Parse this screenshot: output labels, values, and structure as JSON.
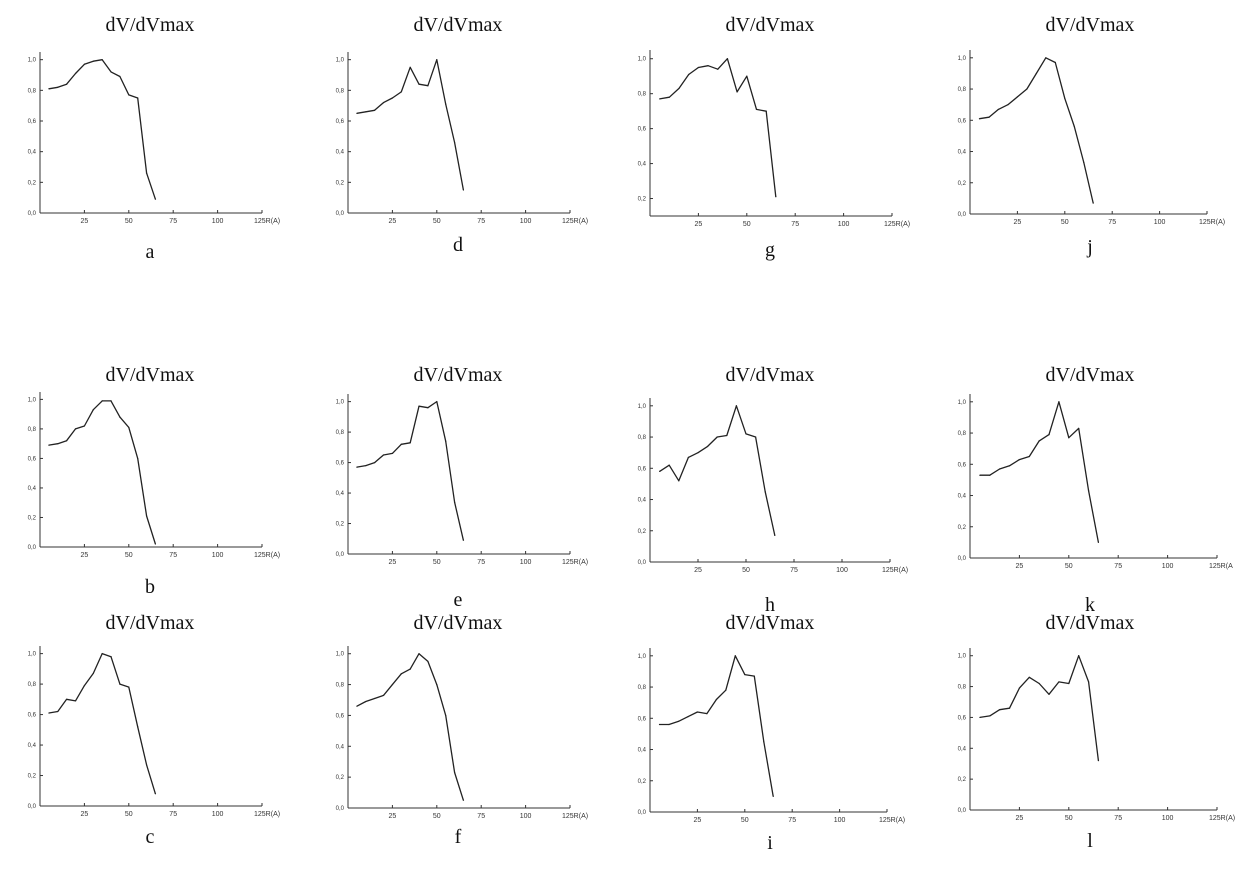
{
  "chart_data": [
    {
      "id": "a",
      "type": "line",
      "title": "dV/dVmax",
      "label": "a",
      "xlim": [
        0,
        125
      ],
      "ylim": [
        0,
        1.05
      ],
      "xticks": [
        {
          "v": 25,
          "t": "25"
        },
        {
          "v": 50,
          "t": "50"
        },
        {
          "v": 75,
          "t": "75"
        },
        {
          "v": 100,
          "t": "100"
        },
        {
          "v": 125,
          "t": "125R(A)"
        }
      ],
      "yticks": [
        {
          "v": 0.0,
          "t": "0,0"
        },
        {
          "v": 0.2,
          "t": "0,2"
        },
        {
          "v": 0.4,
          "t": "0,4"
        },
        {
          "v": 0.6,
          "t": "0,6"
        },
        {
          "v": 0.8,
          "t": "0,8"
        },
        {
          "v": 1.0,
          "t": "1,0"
        }
      ],
      "x": [
        5,
        10,
        15,
        20,
        25,
        30,
        35,
        40,
        45,
        50,
        55,
        60,
        65
      ],
      "y": [
        0.81,
        0.82,
        0.84,
        0.91,
        0.97,
        0.99,
        1.0,
        0.92,
        0.89,
        0.77,
        0.75,
        0.26,
        0.09
      ]
    },
    {
      "id": "d",
      "type": "line",
      "title": "dV/dVmax",
      "label": "d",
      "xlim": [
        0,
        125
      ],
      "ylim": [
        0,
        1.05
      ],
      "xticks": [
        {
          "v": 25,
          "t": "25"
        },
        {
          "v": 50,
          "t": "50"
        },
        {
          "v": 75,
          "t": "75"
        },
        {
          "v": 100,
          "t": "100"
        },
        {
          "v": 125,
          "t": "125R(A)"
        }
      ],
      "yticks": [
        {
          "v": 0.0,
          "t": "0,0"
        },
        {
          "v": 0.2,
          "t": "0,2"
        },
        {
          "v": 0.4,
          "t": "0,4"
        },
        {
          "v": 0.6,
          "t": "0,6"
        },
        {
          "v": 0.8,
          "t": "0,8"
        },
        {
          "v": 1.0,
          "t": "1,0"
        }
      ],
      "x": [
        5,
        10,
        15,
        20,
        25,
        30,
        35,
        40,
        45,
        50,
        55,
        60,
        65
      ],
      "y": [
        0.65,
        0.66,
        0.67,
        0.72,
        0.75,
        0.79,
        0.95,
        0.84,
        0.83,
        1.0,
        0.71,
        0.46,
        0.15
      ]
    },
    {
      "id": "g",
      "type": "line",
      "title": "dV/dVmax",
      "label": "g",
      "xlim": [
        0,
        125
      ],
      "ylim": [
        0.1,
        1.05
      ],
      "xticks": [
        {
          "v": 25,
          "t": "25"
        },
        {
          "v": 50,
          "t": "50"
        },
        {
          "v": 75,
          "t": "75"
        },
        {
          "v": 100,
          "t": "100"
        },
        {
          "v": 125,
          "t": "125R(A)"
        }
      ],
      "yticks": [
        {
          "v": 0.2,
          "t": "0,2"
        },
        {
          "v": 0.4,
          "t": "0,4"
        },
        {
          "v": 0.6,
          "t": "0,6"
        },
        {
          "v": 0.8,
          "t": "0,8"
        },
        {
          "v": 1.0,
          "t": "1,0"
        }
      ],
      "x": [
        5,
        10,
        15,
        20,
        25,
        30,
        35,
        40,
        45,
        50,
        55,
        60,
        65
      ],
      "y": [
        0.77,
        0.78,
        0.83,
        0.91,
        0.95,
        0.96,
        0.94,
        1.0,
        0.81,
        0.9,
        0.71,
        0.7,
        0.21
      ]
    },
    {
      "id": "j",
      "type": "line",
      "title": "dV/dVmax",
      "label": "j",
      "xlim": [
        0,
        125
      ],
      "ylim": [
        0,
        1.05
      ],
      "xticks": [
        {
          "v": 25,
          "t": "25"
        },
        {
          "v": 50,
          "t": "50"
        },
        {
          "v": 75,
          "t": "75"
        },
        {
          "v": 100,
          "t": "100"
        },
        {
          "v": 125,
          "t": "125R(A)"
        }
      ],
      "yticks": [
        {
          "v": 0.0,
          "t": "0,0"
        },
        {
          "v": 0.2,
          "t": "0,2"
        },
        {
          "v": 0.4,
          "t": "0,4"
        },
        {
          "v": 0.6,
          "t": "0,6"
        },
        {
          "v": 0.8,
          "t": "0,8"
        },
        {
          "v": 1.0,
          "t": "1,0"
        }
      ],
      "x": [
        5,
        10,
        15,
        20,
        25,
        30,
        35,
        40,
        45,
        50,
        55,
        60,
        65
      ],
      "y": [
        0.61,
        0.62,
        0.67,
        0.7,
        0.75,
        0.8,
        0.9,
        1.0,
        0.97,
        0.74,
        0.56,
        0.33,
        0.07
      ]
    },
    {
      "id": "b",
      "type": "line",
      "title": "dV/dVmax",
      "label": "b",
      "xlim": [
        0,
        125
      ],
      "ylim": [
        0,
        1.05
      ],
      "xticks": [
        {
          "v": 25,
          "t": "25"
        },
        {
          "v": 50,
          "t": "50"
        },
        {
          "v": 75,
          "t": "75"
        },
        {
          "v": 100,
          "t": "100"
        },
        {
          "v": 125,
          "t": "125R(A)"
        }
      ],
      "yticks": [
        {
          "v": 0.0,
          "t": "0,0"
        },
        {
          "v": 0.2,
          "t": "0,2"
        },
        {
          "v": 0.4,
          "t": "0,4"
        },
        {
          "v": 0.6,
          "t": "0,6"
        },
        {
          "v": 0.8,
          "t": "0,8"
        },
        {
          "v": 1.0,
          "t": "1,0"
        }
      ],
      "x": [
        5,
        10,
        15,
        20,
        25,
        30,
        35,
        40,
        45,
        50,
        55,
        60,
        65
      ],
      "y": [
        0.69,
        0.7,
        0.72,
        0.8,
        0.82,
        0.93,
        0.99,
        0.99,
        0.88,
        0.81,
        0.6,
        0.21,
        0.02
      ]
    },
    {
      "id": "e",
      "type": "line",
      "title": "dV/dVmax",
      "label": "e",
      "xlim": [
        0,
        125
      ],
      "ylim": [
        0,
        1.05
      ],
      "xticks": [
        {
          "v": 25,
          "t": "25"
        },
        {
          "v": 50,
          "t": "50"
        },
        {
          "v": 75,
          "t": "75"
        },
        {
          "v": 100,
          "t": "100"
        },
        {
          "v": 125,
          "t": "125R(A)"
        }
      ],
      "yticks": [
        {
          "v": 0.0,
          "t": "0,0"
        },
        {
          "v": 0.2,
          "t": "0,2"
        },
        {
          "v": 0.4,
          "t": "0,4"
        },
        {
          "v": 0.6,
          "t": "0,6"
        },
        {
          "v": 0.8,
          "t": "0,8"
        },
        {
          "v": 1.0,
          "t": "1,0"
        }
      ],
      "x": [
        5,
        10,
        15,
        20,
        25,
        30,
        35,
        40,
        45,
        50,
        55,
        60,
        65
      ],
      "y": [
        0.57,
        0.58,
        0.6,
        0.65,
        0.66,
        0.72,
        0.73,
        0.97,
        0.96,
        1.0,
        0.74,
        0.34,
        0.09
      ]
    },
    {
      "id": "h",
      "type": "line",
      "title": "dV/dVmax",
      "label": "h",
      "xlim": [
        0,
        125
      ],
      "ylim": [
        0,
        1.05
      ],
      "xticks": [
        {
          "v": 25,
          "t": "25"
        },
        {
          "v": 50,
          "t": "50"
        },
        {
          "v": 75,
          "t": "75"
        },
        {
          "v": 100,
          "t": "100"
        },
        {
          "v": 125,
          "t": "125R(A)"
        }
      ],
      "yticks": [
        {
          "v": 0.0,
          "t": "0,0"
        },
        {
          "v": 0.2,
          "t": "0,2"
        },
        {
          "v": 0.4,
          "t": "0,4"
        },
        {
          "v": 0.6,
          "t": "0,6"
        },
        {
          "v": 0.8,
          "t": "0,8"
        },
        {
          "v": 1.0,
          "t": "1,0"
        }
      ],
      "x": [
        5,
        10,
        15,
        20,
        25,
        30,
        35,
        40,
        45,
        50,
        55,
        60,
        65
      ],
      "y": [
        0.58,
        0.62,
        0.52,
        0.67,
        0.7,
        0.74,
        0.8,
        0.81,
        1.0,
        0.82,
        0.8,
        0.45,
        0.17
      ]
    },
    {
      "id": "k",
      "type": "line",
      "title": "dV/dVmax",
      "label": "k",
      "xlim": [
        0,
        125
      ],
      "ylim": [
        0,
        1.05
      ],
      "xticks": [
        {
          "v": 25,
          "t": "25"
        },
        {
          "v": 50,
          "t": "50"
        },
        {
          "v": 75,
          "t": "75"
        },
        {
          "v": 100,
          "t": "100"
        },
        {
          "v": 125,
          "t": "125R(A"
        }
      ],
      "yticks": [
        {
          "v": 0.0,
          "t": "0,0"
        },
        {
          "v": 0.2,
          "t": "0,2"
        },
        {
          "v": 0.4,
          "t": "0,4"
        },
        {
          "v": 0.6,
          "t": "0,6"
        },
        {
          "v": 0.8,
          "t": "0,8"
        },
        {
          "v": 1.0,
          "t": "1,0"
        }
      ],
      "x": [
        5,
        10,
        15,
        20,
        25,
        30,
        35,
        40,
        45,
        50,
        55,
        60,
        65
      ],
      "y": [
        0.53,
        0.53,
        0.57,
        0.59,
        0.63,
        0.65,
        0.75,
        0.79,
        1.0,
        0.77,
        0.83,
        0.43,
        0.1
      ]
    },
    {
      "id": "c",
      "type": "line",
      "title": "dV/dVmax",
      "label": "c",
      "xlim": [
        0,
        125
      ],
      "ylim": [
        0,
        1.05
      ],
      "xticks": [
        {
          "v": 25,
          "t": "25"
        },
        {
          "v": 50,
          "t": "50"
        },
        {
          "v": 75,
          "t": "75"
        },
        {
          "v": 100,
          "t": "100"
        },
        {
          "v": 125,
          "t": "125R(A)"
        }
      ],
      "yticks": [
        {
          "v": 0.0,
          "t": "0,0"
        },
        {
          "v": 0.2,
          "t": "0,2"
        },
        {
          "v": 0.4,
          "t": "0,4"
        },
        {
          "v": 0.6,
          "t": "0,6"
        },
        {
          "v": 0.8,
          "t": "0,8"
        },
        {
          "v": 1.0,
          "t": "1,0"
        }
      ],
      "x": [
        5,
        10,
        15,
        20,
        25,
        30,
        35,
        40,
        45,
        50,
        55,
        60,
        65
      ],
      "y": [
        0.61,
        0.62,
        0.7,
        0.69,
        0.79,
        0.87,
        1.0,
        0.98,
        0.8,
        0.78,
        0.52,
        0.27,
        0.08
      ]
    },
    {
      "id": "f",
      "type": "line",
      "title": "dV/dVmax",
      "label": "f",
      "xlim": [
        0,
        125
      ],
      "ylim": [
        0,
        1.05
      ],
      "xticks": [
        {
          "v": 25,
          "t": "25"
        },
        {
          "v": 50,
          "t": "50"
        },
        {
          "v": 75,
          "t": "75"
        },
        {
          "v": 100,
          "t": "100"
        },
        {
          "v": 125,
          "t": "125R(A)"
        }
      ],
      "yticks": [
        {
          "v": 0.0,
          "t": "0,0"
        },
        {
          "v": 0.2,
          "t": "0,2"
        },
        {
          "v": 0.4,
          "t": "0,4"
        },
        {
          "v": 0.6,
          "t": "0,6"
        },
        {
          "v": 0.8,
          "t": "0,8"
        },
        {
          "v": 1.0,
          "t": "1,0"
        }
      ],
      "x": [
        5,
        10,
        15,
        20,
        25,
        30,
        35,
        40,
        45,
        50,
        55,
        60,
        65
      ],
      "y": [
        0.66,
        0.69,
        0.71,
        0.73,
        0.8,
        0.87,
        0.9,
        1.0,
        0.95,
        0.8,
        0.6,
        0.23,
        0.05
      ]
    },
    {
      "id": "i",
      "type": "line",
      "title": "dV/dVmax",
      "label": "i",
      "xlim": [
        0,
        125
      ],
      "ylim": [
        0,
        1.05
      ],
      "xticks": [
        {
          "v": 25,
          "t": "25"
        },
        {
          "v": 50,
          "t": "50"
        },
        {
          "v": 75,
          "t": "75"
        },
        {
          "v": 100,
          "t": "100"
        },
        {
          "v": 125,
          "t": "125R(A)"
        }
      ],
      "yticks": [
        {
          "v": 0.0,
          "t": "0,0"
        },
        {
          "v": 0.2,
          "t": "0,2"
        },
        {
          "v": 0.4,
          "t": "0,4"
        },
        {
          "v": 0.6,
          "t": "0,6"
        },
        {
          "v": 0.8,
          "t": "0,8"
        },
        {
          "v": 1.0,
          "t": "1,0"
        }
      ],
      "x": [
        5,
        10,
        15,
        20,
        25,
        30,
        35,
        40,
        45,
        50,
        55,
        60,
        65
      ],
      "y": [
        0.56,
        0.56,
        0.58,
        0.61,
        0.64,
        0.63,
        0.72,
        0.78,
        1.0,
        0.88,
        0.87,
        0.45,
        0.1
      ]
    },
    {
      "id": "l",
      "type": "line",
      "title": "dV/dVmax",
      "label": "l",
      "xlim": [
        0,
        125
      ],
      "ylim": [
        0,
        1.05
      ],
      "xticks": [
        {
          "v": 25,
          "t": "25"
        },
        {
          "v": 50,
          "t": "50"
        },
        {
          "v": 75,
          "t": "75"
        },
        {
          "v": 100,
          "t": "100"
        },
        {
          "v": 125,
          "t": "125R(A)"
        }
      ],
      "yticks": [
        {
          "v": 0.0,
          "t": "0,0"
        },
        {
          "v": 0.2,
          "t": "0,2"
        },
        {
          "v": 0.4,
          "t": "0,4"
        },
        {
          "v": 0.6,
          "t": "0,6"
        },
        {
          "v": 0.8,
          "t": "0,8"
        },
        {
          "v": 1.0,
          "t": "1,0"
        }
      ],
      "x": [
        5,
        10,
        15,
        20,
        25,
        30,
        35,
        40,
        45,
        50,
        55,
        60,
        65
      ],
      "y": [
        0.6,
        0.61,
        0.65,
        0.66,
        0.79,
        0.86,
        0.82,
        0.75,
        0.83,
        0.82,
        1.0,
        0.83,
        0.32
      ]
    }
  ]
}
